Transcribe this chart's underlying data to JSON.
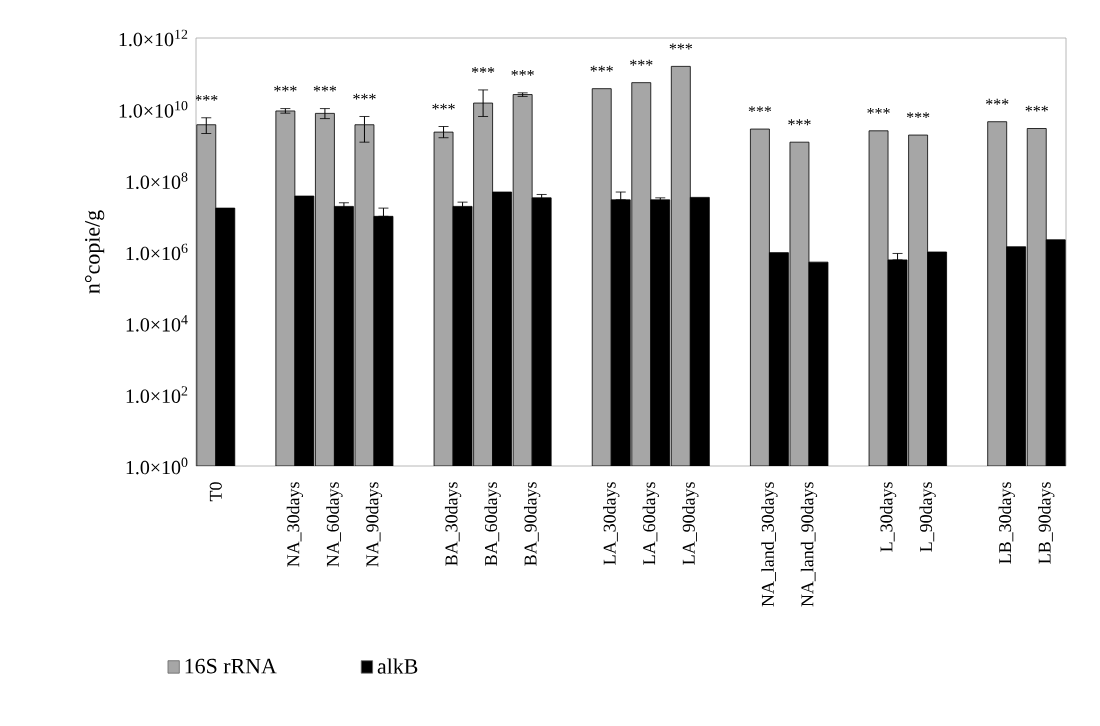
{
  "chart_data": {
    "type": "bar",
    "ylabel": "n°copie/g",
    "log": "y",
    "legend": "bottom",
    "categories": [
      "T0",
      null,
      "NA_30days",
      "NA_60days",
      "NA_90days",
      null,
      "BA_30days",
      "BA_60days",
      "BA_90days",
      null,
      "LA_30days",
      "LA_60days",
      "LA_90days",
      null,
      "NA_land_30days",
      "NA_land_90days",
      null,
      "L_30days",
      "L_90days",
      null,
      "LB_30days",
      "LB_90days"
    ],
    "ylim": [
      1,
      1000000000000
    ],
    "yticks": [
      {
        "value": 1,
        "label": "1.0×10$^{0}$"
      },
      {
        "value": 100,
        "label": "1.0×10$^{2}$"
      },
      {
        "value": 10000,
        "label": "1.0×10$^{4}$"
      },
      {
        "value": 1000000,
        "label": "1.0×10$^{6}$"
      },
      {
        "value": 100000000,
        "label": "1.0×10$^{8}$"
      },
      {
        "value": 10000000000,
        "label": "1.0×10$^{10}$"
      },
      {
        "value": 1000000000000,
        "label": "1.0×10$^{12}$"
      }
    ],
    "series": [
      {
        "name": "16S rRNA",
        "color": "#a6a6a6",
        "values": [
          3700000000.0,
          null,
          9000000000.0,
          7700000000.0,
          3700000000.0,
          null,
          2300000000.0,
          15000000000.0,
          26000000000.0,
          null,
          38000000000.0,
          56000000000.0,
          160000000000.0,
          null,
          2800000000.0,
          1200000000.0,
          null,
          2500000000.0,
          1900000000.0,
          null,
          4500000000.0,
          2900000000.0
        ],
        "errors": [
          [
            2100000000.0,
            5800000000.0
          ],
          null,
          [
            7800000000.0,
            10500000000.0
          ],
          [
            5500000000.0,
            10500000000.0
          ],
          [
            1200000000.0,
            6300000000.0
          ],
          null,
          [
            1600000000.0,
            3300000000.0
          ],
          [
            6300000000.0,
            35000000000.0
          ],
          [
            23000000000.0,
            29000000000.0
          ],
          null,
          null,
          null,
          null,
          null,
          null,
          null,
          null,
          null,
          null,
          null,
          null,
          null
        ]
      },
      {
        "name": "alkB",
        "color": "#000000",
        "values": [
          17000000.0,
          null,
          37000000.0,
          19000000.0,
          10000000.0,
          null,
          19000000.0,
          48000000.0,
          33000000.0,
          null,
          29000000.0,
          29000000.0,
          34000000.0,
          null,
          960000.0,
          520000.0,
          null,
          600000.0,
          1000000.0,
          null,
          1400000.0,
          2200000.0
        ],
        "errors": [
          null,
          null,
          null,
          [
            15000000.0,
            24000000.0
          ],
          [
            10000000.0,
            17000000.0
          ],
          null,
          [
            14000000.0,
            25000000.0
          ],
          null,
          [
            27000000.0,
            41000000.0
          ],
          null,
          [
            29000000.0,
            48000000.0
          ],
          [
            25000000.0,
            33000000.0
          ],
          null,
          null,
          null,
          null,
          null,
          [
            600000.0,
            910000.0
          ],
          null,
          null,
          null,
          null
        ]
      }
    ],
    "annotations": [
      "***",
      "***",
      "***",
      "***",
      "***",
      "***",
      "***",
      "***",
      "***",
      "***",
      "***",
      "***",
      "***",
      "***",
      "***",
      "***"
    ]
  }
}
